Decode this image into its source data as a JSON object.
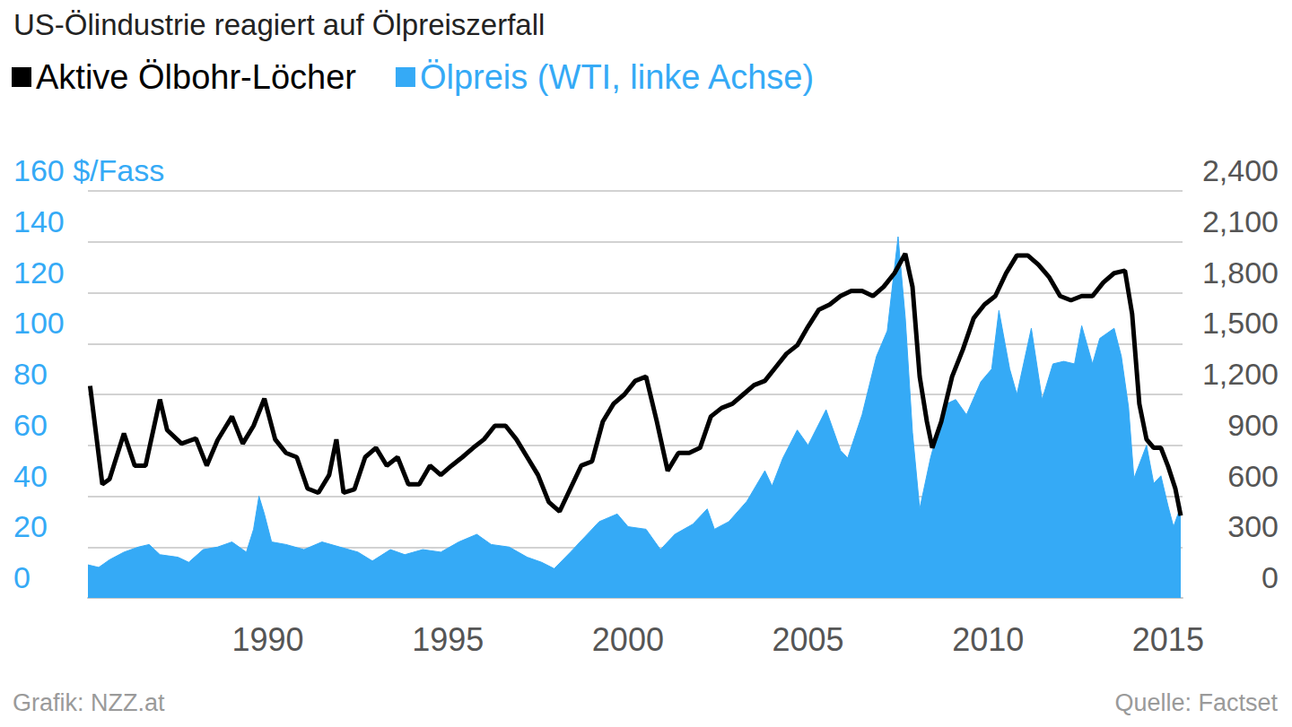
{
  "chart_data": {
    "type": "line",
    "title": "US-Ölindustrie reagiert auf Ölpreiszerfall",
    "credit": "Grafik: NZZ.at",
    "source": "Quelle: Factset",
    "legend": "top-left",
    "grid": true,
    "xlim": [
      1986,
      2016.4
    ],
    "xticks": [
      1990,
      1995,
      2000,
      2005,
      2010,
      2015
    ],
    "ylim": [
      0,
      160
    ],
    "yticks": [
      0,
      20,
      40,
      60,
      80,
      100,
      120,
      140,
      {
        "value": 160,
        "label": "160 $/Fass"
      }
    ],
    "y2lim": [
      0,
      2400
    ],
    "y2ticks": [
      0,
      300,
      600,
      900,
      {
        "value": 1200,
        "label": "1,200"
      },
      {
        "value": 1500,
        "label": "1,500"
      },
      {
        "value": 1800,
        "label": "1,800"
      },
      {
        "value": 2100,
        "label": "2,100"
      },
      {
        "value": 2400,
        "label": "2,400"
      }
    ],
    "series": [
      {
        "name": "Aktive Ölbohr-Löcher",
        "color": "#000000",
        "type": "line",
        "axis": "y2",
        "x": [
          1986.06,
          1986.4,
          1986.6,
          1987.0,
          1987.3,
          1987.6,
          1988.0,
          1988.2,
          1988.6,
          1989.0,
          1989.3,
          1989.6,
          1990.0,
          1990.3,
          1990.6,
          1990.9,
          1991.2,
          1991.5,
          1991.8,
          1992.1,
          1992.4,
          1992.7,
          1992.9,
          1993.1,
          1993.4,
          1993.7,
          1994.0,
          1994.3,
          1994.6,
          1994.9,
          1995.2,
          1995.5,
          1995.8,
          1996.1,
          1996.4,
          1996.7,
          1997.0,
          1997.3,
          1997.6,
          1997.9,
          1998.2,
          1998.5,
          1998.8,
          1999.1,
          1999.4,
          1999.7,
          2000.0,
          2000.3,
          2000.6,
          2000.9,
          2001.2,
          2001.5,
          2001.8,
          2002.1,
          2002.4,
          2002.7,
          2003.0,
          2003.3,
          2003.6,
          2003.9,
          2004.2,
          2004.5,
          2004.8,
          2005.1,
          2005.4,
          2005.7,
          2006.0,
          2006.3,
          2006.6,
          2006.9,
          2007.2,
          2007.5,
          2007.8,
          2008.1,
          2008.4,
          2008.7,
          2008.9,
          2009.1,
          2009.3,
          2009.45,
          2009.7,
          2010.0,
          2010.3,
          2010.6,
          2010.9,
          2011.2,
          2011.5,
          2011.8,
          2012.1,
          2012.4,
          2012.7,
          2013.0,
          2013.3,
          2013.6,
          2013.9,
          2014.2,
          2014.5,
          2014.8,
          2015.0,
          2015.2,
          2015.4,
          2015.6,
          2015.8,
          2016.0,
          2016.2,
          2016.35
        ],
        "values": [
          1250,
          670,
          700,
          970,
          780,
          780,
          1170,
          990,
          910,
          940,
          780,
          930,
          1070,
          910,
          1015,
          1175,
          935,
          855,
          830,
          645,
          620,
          725,
          935,
          620,
          640,
          830,
          885,
          780,
          830,
          670,
          670,
          780,
          725,
          780,
          830,
          885,
          935,
          1015,
          1015,
          935,
          830,
          725,
          565,
          510,
          645,
          780,
          805,
          1040,
          1145,
          1200,
          1280,
          1305,
          1040,
          750,
          855,
          855,
          885,
          1070,
          1120,
          1145,
          1200,
          1255,
          1280,
          1360,
          1440,
          1490,
          1600,
          1700,
          1730,
          1780,
          1810,
          1810,
          1780,
          1835,
          1915,
          2030,
          1835,
          1305,
          1040,
          885,
          1040,
          1305,
          1465,
          1650,
          1730,
          1780,
          1915,
          2020,
          2020,
          1965,
          1890,
          1780,
          1755,
          1780,
          1780,
          1860,
          1915,
          1930,
          1675,
          1145,
          935,
          885,
          885,
          775,
          645,
          485
        ]
      },
      {
        "name": "Ölpreis (WTI, linke Achse)",
        "color": "#35aaf6",
        "type": "area",
        "axis": "y",
        "x": [
          1986.0,
          1986.3,
          1986.6,
          1987.0,
          1987.4,
          1987.7,
          1988.0,
          1988.5,
          1988.8,
          1989.2,
          1989.6,
          1990.0,
          1990.4,
          1990.6,
          1990.75,
          1990.9,
          1991.1,
          1991.5,
          1992.0,
          1992.5,
          1993.0,
          1993.5,
          1993.9,
          1994.4,
          1994.8,
          1995.3,
          1995.8,
          1996.3,
          1996.8,
          1997.2,
          1997.7,
          1998.2,
          1998.6,
          1998.95,
          1999.4,
          1999.8,
          2000.2,
          2000.7,
          2001.0,
          2001.5,
          2001.9,
          2002.3,
          2002.8,
          2003.2,
          2003.4,
          2003.8,
          2004.3,
          2004.8,
          2005.0,
          2005.3,
          2005.7,
          2006.0,
          2006.5,
          2006.9,
          2007.1,
          2007.5,
          2007.9,
          2008.2,
          2008.5,
          2008.7,
          2008.9,
          2009.1,
          2009.4,
          2009.8,
          2010.1,
          2010.4,
          2010.8,
          2011.1,
          2011.3,
          2011.6,
          2011.8,
          2012.2,
          2012.5,
          2012.8,
          2013.1,
          2013.4,
          2013.6,
          2013.9,
          2014.1,
          2014.5,
          2014.7,
          2014.9,
          2015.05,
          2015.4,
          2015.6,
          2015.8,
          2016.0,
          2016.15,
          2016.35
        ],
        "values": [
          13,
          12,
          15,
          18,
          20,
          21,
          17,
          16,
          14,
          19,
          20,
          22,
          18,
          27,
          40,
          33,
          22,
          21,
          19,
          22,
          20,
          18,
          14.5,
          19,
          17,
          19,
          18,
          22,
          25,
          21,
          20,
          16,
          14,
          11.5,
          18,
          24,
          30,
          33,
          28,
          27,
          19,
          25,
          29,
          35,
          27,
          30,
          38,
          50,
          44,
          55,
          66,
          60,
          74,
          58,
          55,
          72,
          95,
          105,
          142,
          110,
          65,
          35,
          55,
          76,
          78,
          72,
          85,
          90,
          113,
          90,
          80,
          106,
          78,
          92,
          93,
          92,
          107,
          92,
          102,
          106,
          95,
          75,
          47,
          60,
          45,
          48,
          36,
          28,
          36
        ]
      }
    ]
  }
}
